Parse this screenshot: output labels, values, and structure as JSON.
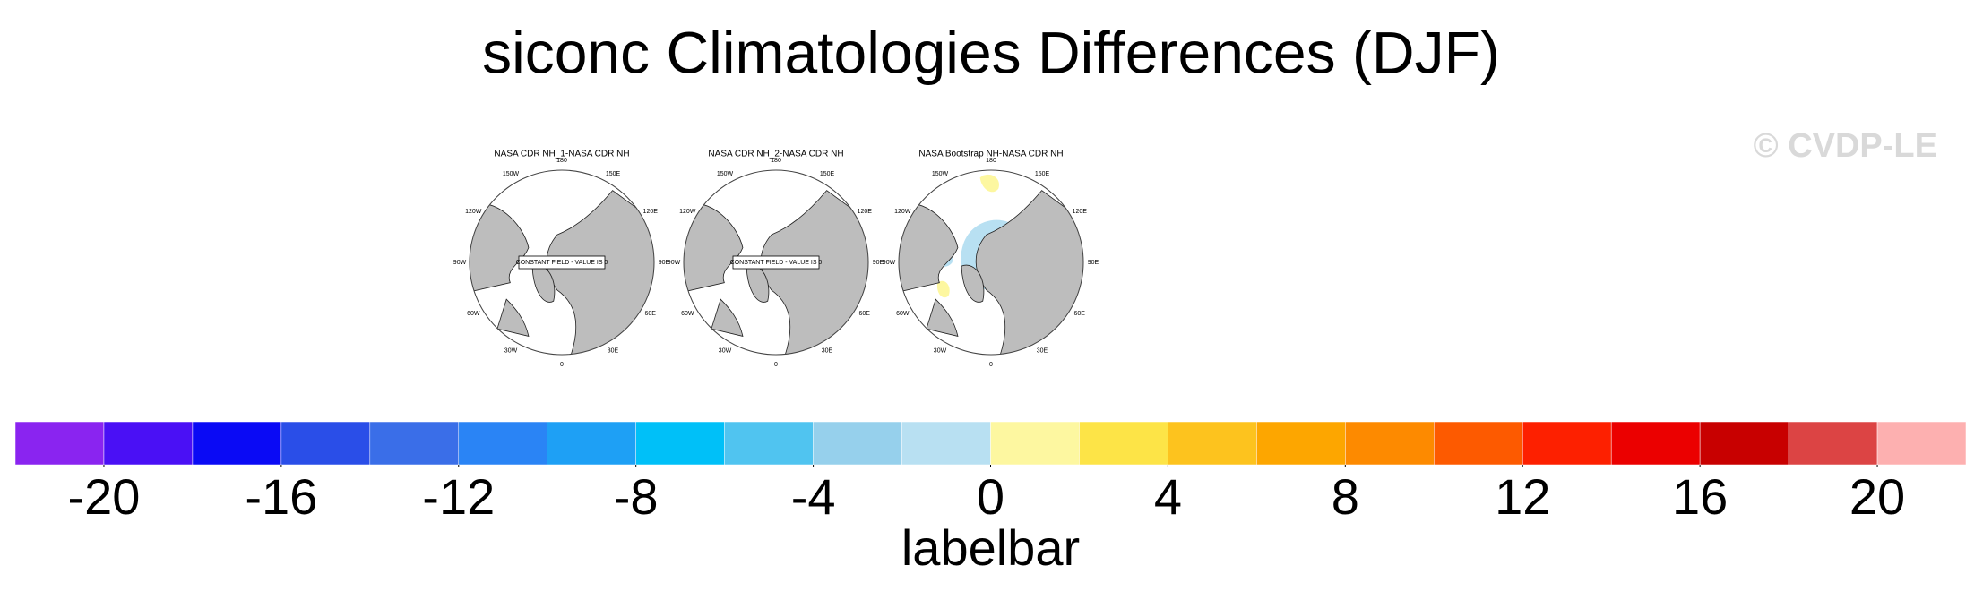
{
  "title": "siconc Climatologies Differences (DJF)",
  "watermark": "© CVDP-LE",
  "lon_labels": [
    "180",
    "150E",
    "120E",
    "90E",
    "60E",
    "30E",
    "0",
    "30W",
    "60W",
    "90W",
    "120W",
    "150W"
  ],
  "panels": [
    {
      "title": "NASA CDR NH_1-NASA CDR NH",
      "annotation": "CONSTANT FIELD - VALUE IS 0"
    },
    {
      "title": "NASA CDR NH_2-NASA CDR NH",
      "annotation": "CONSTANT FIELD - VALUE IS 0"
    },
    {
      "title": "NASA Bootstrap NH-NASA CDR NH"
    }
  ],
  "colorbar": {
    "colors": [
      "#8a24f0",
      "#4a10f5",
      "#0a0af5",
      "#2a4ee8",
      "#3a6ee8",
      "#2a84f5",
      "#1ea0f5",
      "#00c0f8",
      "#50c4f0",
      "#96d0ec",
      "#b8e0f2",
      "#fdf7a0",
      "#fde447",
      "#fdc31e",
      "#fda600",
      "#fd8a00",
      "#fd5a00",
      "#fd2000",
      "#eb0000",
      "#c80000",
      "#dc4444",
      "#fdb0b0"
    ],
    "lim": [
      -22,
      22
    ],
    "ticks": [
      -20,
      -16,
      -12,
      -8,
      -4,
      0,
      4,
      8,
      12,
      16,
      20
    ],
    "label": "labelbar"
  }
}
